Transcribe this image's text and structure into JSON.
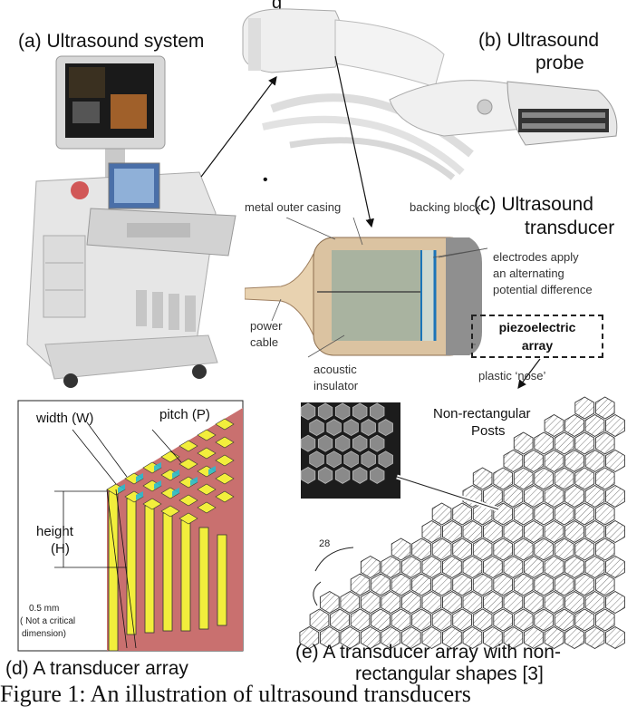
{
  "header_partial": "g",
  "panels": {
    "a": {
      "caption": "(a) Ultrasound system"
    },
    "b": {
      "caption_line1": "(b) Ultrasound",
      "caption_line2": "probe"
    },
    "c": {
      "caption_line1": "(c) Ultrasound",
      "caption_line2": "transducer",
      "labels": {
        "casing": "metal outer casing",
        "backing": "backing block",
        "electrodes_1": "electrodes apply",
        "electrodes_2": "an alternating",
        "electrodes_3": "potential difference",
        "power_1": "power",
        "power_2": "cable",
        "acoustic_1": "acoustic",
        "acoustic_2": "insulator",
        "nose": "plastic ‘nose’",
        "piezo_1": "piezoelectric",
        "piezo_2": "array"
      }
    },
    "d": {
      "caption": "(d) A transducer array",
      "labels": {
        "width": "width (W)",
        "pitch": "pitch (P)",
        "height_1": "height",
        "height_2": "(H)",
        "note_1": "0.5 mm",
        "note_2": "( Not a critical",
        "note_3": "dimension)"
      }
    },
    "e": {
      "caption_line1": "(e) A transducer array with non-",
      "caption_line2": "rectangular shapes [3]",
      "labels": {
        "posts_1": "Non-rectangular",
        "posts_2": "Posts",
        "ref": "28"
      }
    }
  },
  "figure_caption": "Figure 1: An illustration of ultrasound transducers"
}
